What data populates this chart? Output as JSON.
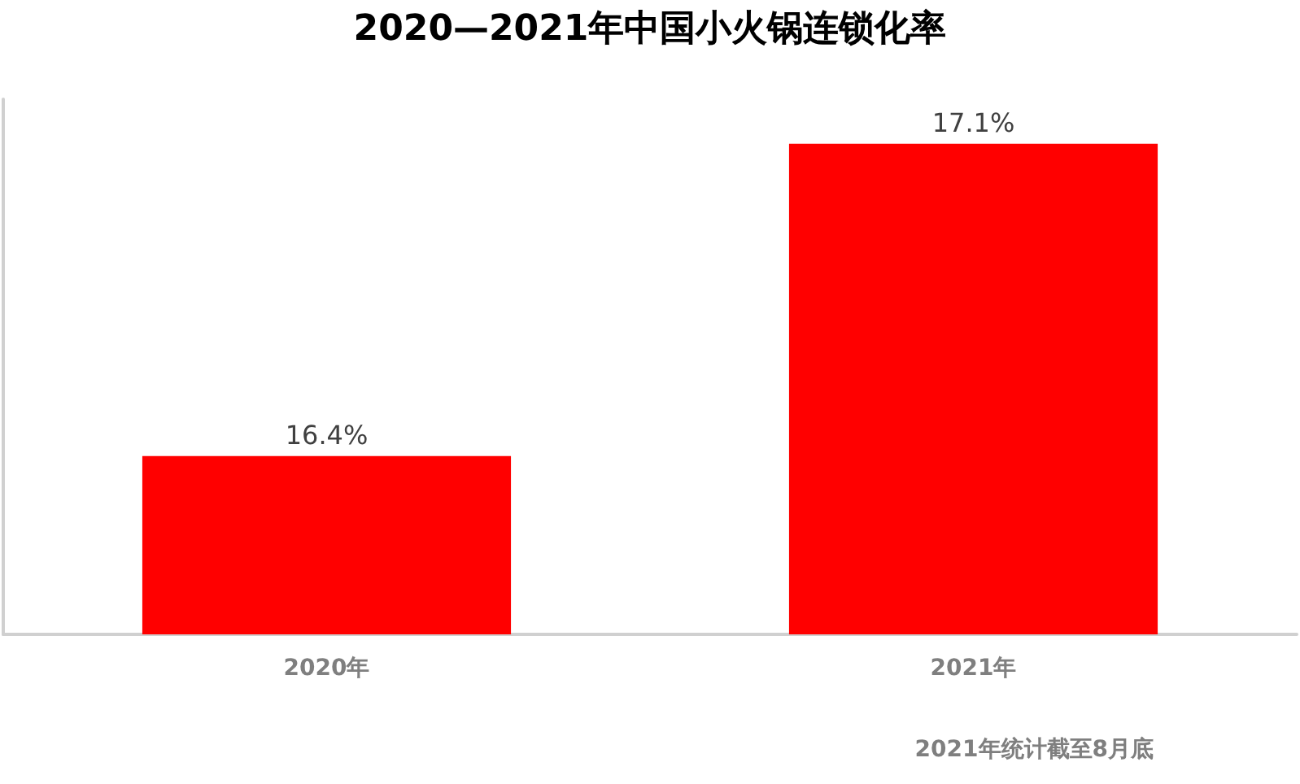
{
  "chart_data": {
    "type": "bar",
    "title": "2020—2021年中国小火锅连锁化率",
    "categories": [
      "2020年",
      "2021年"
    ],
    "values": [
      16.4,
      17.1
    ],
    "color": "#ff0000",
    "value_labels": [
      "16.4%",
      "17.1%"
    ],
    "ylim": [
      16,
      17.2
    ],
    "tick_labels": "x",
    "annotations": [
      "2021年统计截至8月底"
    ]
  }
}
